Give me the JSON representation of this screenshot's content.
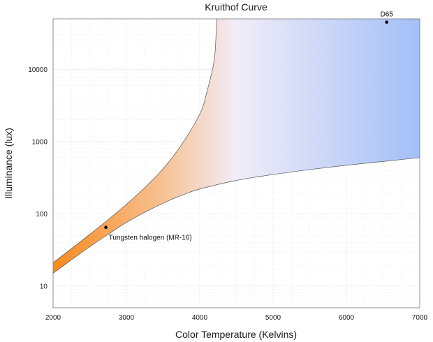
{
  "chart_data": {
    "type": "area",
    "title": "Kruithof Curve",
    "xlabel": "Color Temperature (Kelvins)",
    "ylabel": "Illuminance (lux)",
    "xlim": [
      2000,
      7000
    ],
    "ylim": [
      5,
      50000
    ],
    "y_scale": "log",
    "grid": true,
    "x_ticks": [
      2000,
      3000,
      4000,
      5000,
      6000,
      7000
    ],
    "y_ticks": [
      10,
      100,
      1000,
      10000
    ],
    "upper_boundary": {
      "x": [
        2000,
        2250,
        2500,
        2750,
        3000,
        3250,
        3500,
        3750,
        4000,
        4100,
        4200,
        4230
      ],
      "y": [
        21,
        33,
        52,
        83,
        135,
        230,
        420,
        900,
        2400,
        5000,
        14000,
        50000
      ]
    },
    "lower_boundary": {
      "x": [
        2000,
        2250,
        2500,
        2750,
        3000,
        3250,
        3500,
        3750,
        4000,
        4500,
        5000,
        5500,
        6000,
        6500,
        7000
      ],
      "y": [
        15,
        23,
        35,
        52,
        76,
        105,
        140,
        180,
        220,
        290,
        350,
        410,
        470,
        530,
        600
      ]
    },
    "gradient_stops": [
      {
        "x": 2000,
        "color": "#f78a1e"
      },
      {
        "x": 3500,
        "color": "#f7c294"
      },
      {
        "x": 4500,
        "color": "#f2ecf8"
      },
      {
        "x": 7000,
        "color": "#a2c0f8"
      }
    ],
    "points": [
      {
        "label": "Tungsten halogen (MR-16)",
        "x": 2720,
        "y": 65
      },
      {
        "label": "D65",
        "x": 6550,
        "y": 45000
      }
    ]
  }
}
